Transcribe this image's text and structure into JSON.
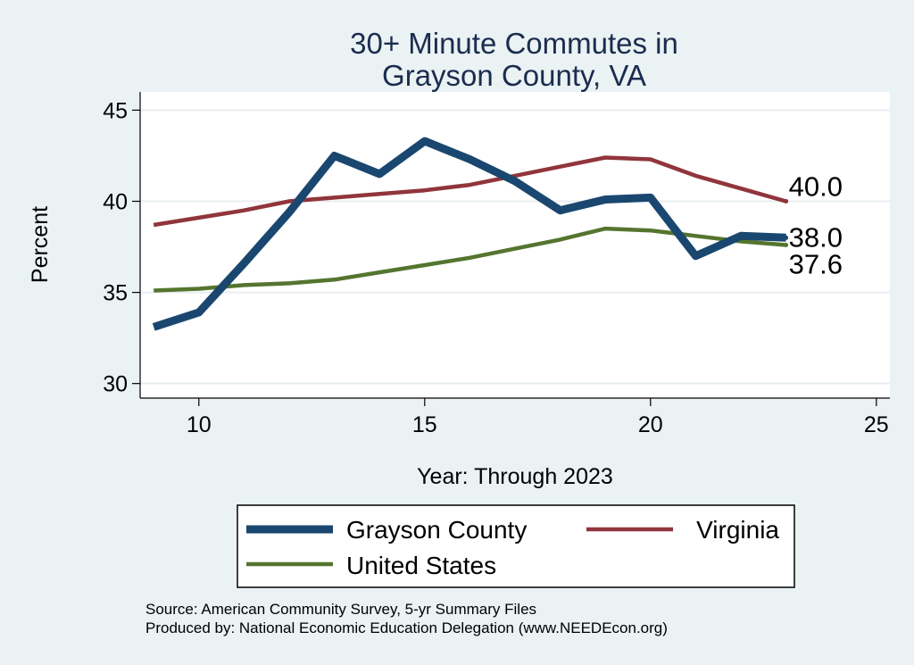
{
  "chart_data": {
    "type": "line",
    "title": [
      "30+ Minute Commutes in",
      "Grayson County, VA"
    ],
    "xlabel": "Year: Through 2023",
    "ylabel": "Percent",
    "xlim": [
      8.7,
      25.3
    ],
    "ylim": [
      29.2,
      46.0
    ],
    "xticks": [
      10,
      15,
      20,
      25
    ],
    "yticks": [
      30,
      35,
      40,
      45
    ],
    "grid": true,
    "series": [
      {
        "name": "Grayson County",
        "color": "#1a476f",
        "x": [
          9,
          10,
          11,
          12,
          13,
          14,
          15,
          16,
          17,
          18,
          19,
          20,
          21,
          22,
          23
        ],
        "values": [
          33.1,
          33.9,
          36.6,
          39.4,
          42.5,
          41.5,
          43.3,
          42.3,
          41.1,
          39.5,
          40.1,
          40.2,
          37.0,
          38.1,
          38.0
        ],
        "end_label": "38.0"
      },
      {
        "name": "Virginia",
        "color": "#90353b",
        "x": [
          9,
          10,
          11,
          12,
          13,
          14,
          15,
          16,
          17,
          18,
          19,
          20,
          21,
          22,
          23
        ],
        "values": [
          38.7,
          39.1,
          39.5,
          40.0,
          40.2,
          40.4,
          40.6,
          40.9,
          41.4,
          41.9,
          42.4,
          42.3,
          41.4,
          40.7,
          40.0
        ],
        "end_label": "40.0"
      },
      {
        "name": "United States",
        "color": "#55752f",
        "x": [
          9,
          10,
          11,
          12,
          13,
          14,
          15,
          16,
          17,
          18,
          19,
          20,
          21,
          22,
          23
        ],
        "values": [
          35.1,
          35.2,
          35.4,
          35.5,
          35.7,
          36.1,
          36.5,
          36.9,
          37.4,
          37.9,
          38.5,
          38.4,
          38.1,
          37.8,
          37.6
        ],
        "end_label": "37.6"
      }
    ],
    "notes": [
      "Source: American Community Survey, 5-yr Summary Files",
      "Produced by: National Economic Education Delegation (www.NEEDEcon.org)"
    ]
  }
}
